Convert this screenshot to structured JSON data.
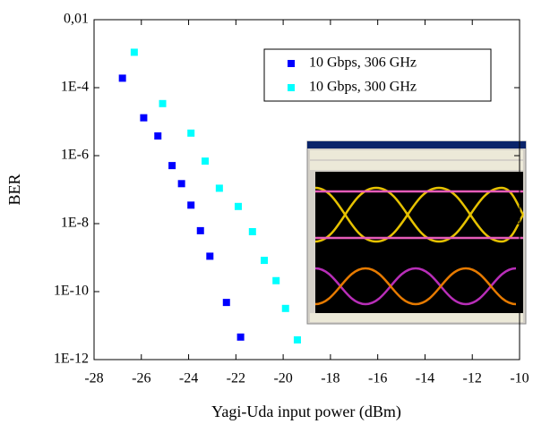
{
  "chart_data": {
    "type": "scatter",
    "x_label": "Yagi-Uda input power (dBm)",
    "y_label": "BER",
    "yscale": "log",
    "xlim": [
      -28,
      -10
    ],
    "xticks": [
      -28,
      -26,
      -24,
      -22,
      -20,
      -18,
      -16,
      -14,
      -12,
      -10
    ],
    "ylim": [
      1e-12,
      0.01
    ],
    "yticks": [
      {
        "value": 0.01,
        "label": "0,01"
      },
      {
        "value": 0.0001,
        "label": "1E-4"
      },
      {
        "value": 1e-06,
        "label": "1E-6"
      },
      {
        "value": 1e-08,
        "label": "1E-8"
      },
      {
        "value": 1e-10,
        "label": "1E-10"
      },
      {
        "value": 1e-12,
        "label": "1E-12"
      }
    ],
    "legend": "top-right",
    "series": [
      {
        "name": "10 Gbps, 306 GHz",
        "color": "#0000ff",
        "x": [
          -26.8,
          -25.9,
          -25.3,
          -24.7,
          -24.3,
          -23.9,
          -23.5,
          -23.1,
          -22.4,
          -21.8
        ],
        "values": [
          0.00019,
          1.3e-05,
          3.8e-06,
          5.1e-07,
          1.5e-07,
          3.5e-08,
          6.2e-09,
          1.1e-09,
          4.8e-11,
          4.6e-12
        ]
      },
      {
        "name": "10 Gbps, 300 GHz",
        "color": "#00ffff",
        "x": [
          -26.3,
          -25.1,
          -23.9,
          -23.3,
          -22.7,
          -21.9,
          -21.3,
          -20.8,
          -20.3,
          -19.9,
          -19.4
        ],
        "values": [
          0.0011,
          3.4e-05,
          4.6e-06,
          6.9e-07,
          1.1e-07,
          3.2e-08,
          5.8e-09,
          8.3e-10,
          2.1e-10,
          3.2e-11,
          3.8e-12
        ]
      }
    ]
  }
}
